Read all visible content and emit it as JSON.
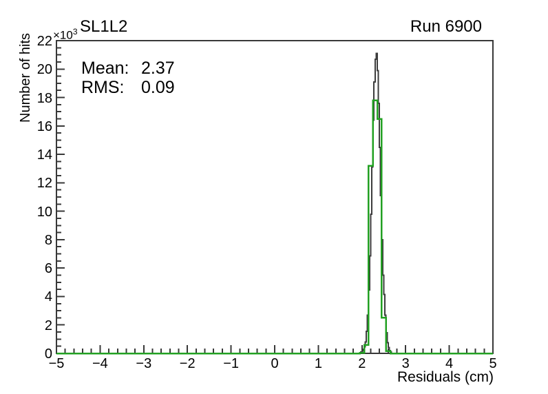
{
  "header": {
    "title": "SL1L2",
    "run_label": "Run 6900"
  },
  "stats_box": {
    "mean_label": "Mean:",
    "mean_value": "2.37",
    "rms_label": "RMS:",
    "rms_value": "0.09"
  },
  "axes": {
    "y_title": "Number of hits",
    "x_title": "Residuals (cm)",
    "y_multiplier_base": "×10",
    "y_multiplier_exponent": "3"
  },
  "chart_data": {
    "type": "histogram-step",
    "title": "SL1L2",
    "corner_label": "Run 6900",
    "xlabel": "Residuals (cm)",
    "ylabel": "Number of hits",
    "y_unit_multiplier": "×10³",
    "xlim": [
      -5,
      5
    ],
    "ylim": [
      0,
      22
    ],
    "x_major_step": 1,
    "x_minor_step": 0.2,
    "y_major_step": 2,
    "y_minor_step": 0.5,
    "grid": false,
    "legend": "none",
    "x_tick_labels": [
      "−5",
      "−4",
      "−3",
      "−2",
      "−1",
      "0",
      "1",
      "2",
      "3",
      "4",
      "5"
    ],
    "x_tick_values": [
      -5,
      -4,
      -3,
      -2,
      -1,
      0,
      1,
      2,
      3,
      4,
      5
    ],
    "y_tick_labels": [
      "0",
      "2",
      "4",
      "6",
      "8",
      "10",
      "12",
      "14",
      "16",
      "18",
      "20",
      "22"
    ],
    "y_tick_values": [
      0,
      2,
      4,
      6,
      8,
      10,
      12,
      14,
      16,
      18,
      20,
      22
    ],
    "annotations": [
      {
        "text": "Mean: 2.37"
      },
      {
        "text": "RMS:  0.09"
      }
    ],
    "stats": {
      "mean": 2.37,
      "rms": 0.09
    },
    "series": [
      {
        "name": "histogram-black",
        "color": "#3c3c3c",
        "line_width": 2,
        "bin_start": 1.95,
        "bin_width": 0.025,
        "values_unit": "1e3 hits",
        "values": [
          0.05,
          0.1,
          0.18,
          0.3,
          0.45,
          0.8,
          1.55,
          2.7,
          4.45,
          6.85,
          9.8,
          13.1,
          16.4,
          19.1,
          20.7,
          21.1,
          19.9,
          17.6,
          14.5,
          11.1,
          8.0,
          5.5,
          4.15,
          2.7,
          1.45,
          0.75,
          0.4,
          0.2,
          0.1
        ]
      },
      {
        "name": "histogram-green",
        "color": "#22a022",
        "line_width": 2.5,
        "bin_start": 1.95,
        "bin_width": 0.1,
        "values_unit": "1e3 hits",
        "values": [
          0.05,
          0.6,
          13.2,
          17.8,
          16.5,
          2.5,
          0.15
        ]
      }
    ]
  }
}
